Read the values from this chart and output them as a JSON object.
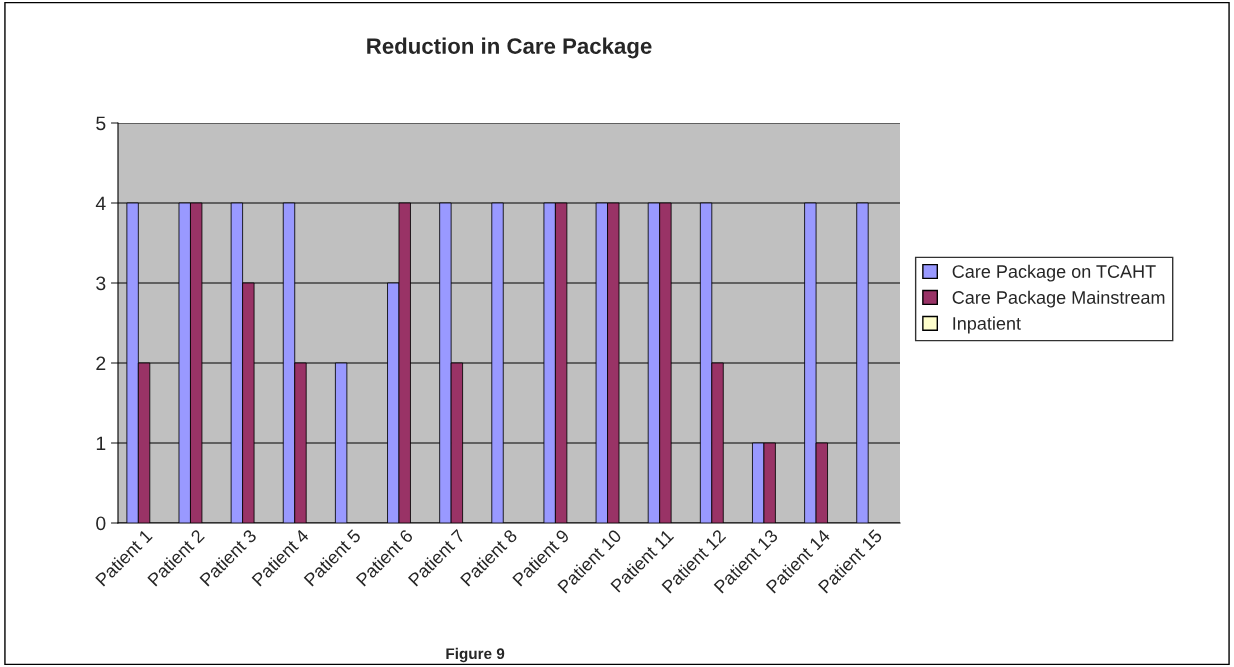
{
  "chart_data": {
    "type": "bar",
    "title": "Reduction in Care Package",
    "categories": [
      "Patient 1",
      "Patient 2",
      "Patient 3",
      "Patient 4",
      "Patient 5",
      "Patient 6",
      "Patient 7",
      "Patient 8",
      "Patient 9",
      "Patient 10",
      "Patient 11",
      "Patient 12",
      "Patient 13",
      "Patient 14",
      "Patient 15"
    ],
    "series": [
      {
        "name": "Care Package on TCAHT",
        "color": "#9999ff",
        "values": [
          4,
          4,
          4,
          4,
          2,
          3,
          4,
          4,
          4,
          4,
          4,
          4,
          1,
          4,
          4
        ]
      },
      {
        "name": "Care Package Mainstream",
        "color": "#993366",
        "values": [
          2,
          4,
          3,
          2,
          null,
          4,
          2,
          null,
          4,
          4,
          4,
          2,
          1,
          1,
          null
        ]
      },
      {
        "name": "Inpatient",
        "color": "#ffffcc",
        "values": [
          null,
          null,
          null,
          null,
          null,
          null,
          null,
          null,
          null,
          null,
          null,
          null,
          null,
          null,
          null
        ]
      }
    ],
    "ylim": [
      0,
      5
    ],
    "yticks": [
      0,
      1,
      2,
      3,
      4,
      5
    ],
    "grid": "y",
    "legend": "right",
    "annotations": [
      "Figure 9"
    ]
  }
}
